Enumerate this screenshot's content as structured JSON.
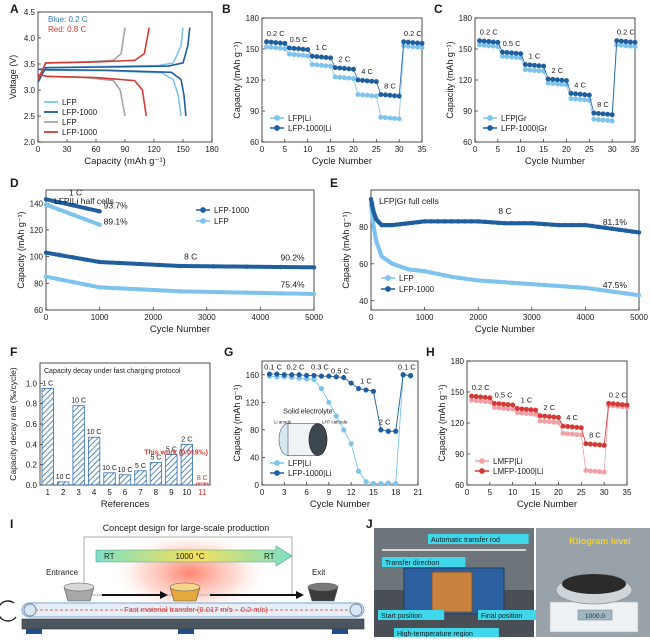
{
  "labels": {
    "A": "A",
    "B": "B",
    "C": "C",
    "D": "D",
    "E": "E",
    "F": "F",
    "G": "G",
    "H": "H",
    "I": "I",
    "J": "J"
  },
  "colors": {
    "dark": "#1f5f9e",
    "light": "#7ec3ec",
    "red": "#d43a35",
    "pink": "#f0a0a6",
    "grey": "#a5a5a5",
    "hatch": "#2f6fb0"
  },
  "chart_data": [
    {
      "id": "A",
      "type": "line",
      "xlabel": "Capacity (mAh g⁻¹)",
      "ylabel": "Voltage (V)",
      "xlim": [
        0,
        180
      ],
      "ylim": [
        2.0,
        4.5
      ],
      "xticks": [
        0,
        30,
        60,
        90,
        120,
        150,
        180
      ],
      "yticks": [
        2.0,
        2.5,
        3.0,
        3.5,
        4.0,
        4.5
      ],
      "annotation_lines": [
        {
          "text": "Blue: 0.2 C",
          "color": "#2f7dc0"
        },
        {
          "text": "Red: 0.8 C",
          "color": "#d43a35"
        }
      ],
      "legend": [
        "LFP",
        "LFP-1000",
        "LFP",
        "LFP-1000"
      ],
      "series": [
        {
          "name": "LFP",
          "color": "#7ec3ec",
          "charge": [
            [
              0,
              3.15
            ],
            [
              8,
              3.43
            ],
            [
              60,
              3.45
            ],
            [
              125,
              3.47
            ],
            [
              140,
              3.52
            ],
            [
              148,
              3.85
            ],
            [
              150,
              4.2
            ]
          ],
          "discharge": [
            [
              0,
              3.4
            ],
            [
              10,
              3.38
            ],
            [
              70,
              3.37
            ],
            [
              128,
              3.33
            ],
            [
              140,
              3.2
            ],
            [
              145,
              2.9
            ],
            [
              148,
              2.5
            ]
          ]
        },
        {
          "name": "LFP-1000",
          "color": "#1f5f9e",
          "charge": [
            [
              0,
              3.15
            ],
            [
              8,
              3.43
            ],
            [
              60,
              3.44
            ],
            [
              135,
              3.46
            ],
            [
              150,
              3.52
            ],
            [
              155,
              3.85
            ],
            [
              157,
              4.2
            ]
          ],
          "discharge": [
            [
              0,
              3.4
            ],
            [
              10,
              3.39
            ],
            [
              70,
              3.38
            ],
            [
              138,
              3.34
            ],
            [
              148,
              3.2
            ],
            [
              151,
              2.9
            ],
            [
              153,
              2.5
            ]
          ]
        },
        {
          "name": "LFP",
          "color": "#a5a5a5",
          "charge": [
            [
              0,
              3.2
            ],
            [
              8,
              3.52
            ],
            [
              50,
              3.54
            ],
            [
              78,
              3.57
            ],
            [
              86,
              3.7
            ],
            [
              90,
              4.2
            ]
          ],
          "discharge": [
            [
              0,
              3.3
            ],
            [
              10,
              3.26
            ],
            [
              50,
              3.24
            ],
            [
              78,
              3.18
            ],
            [
              85,
              3.0
            ],
            [
              90,
              2.5
            ]
          ]
        },
        {
          "name": "LFP-1000",
          "color": "#d43a35",
          "charge": [
            [
              0,
              3.2
            ],
            [
              8,
              3.52
            ],
            [
              60,
              3.54
            ],
            [
              100,
              3.57
            ],
            [
              110,
              3.7
            ],
            [
              115,
              4.2
            ]
          ],
          "discharge": [
            [
              0,
              3.3
            ],
            [
              10,
              3.26
            ],
            [
              60,
              3.24
            ],
            [
              100,
              3.18
            ],
            [
              108,
              3.0
            ],
            [
              112,
              2.5
            ]
          ]
        }
      ]
    },
    {
      "id": "B",
      "type": "scatter",
      "xlabel": "Cycle Number",
      "ylabel": "Capacity (mAh g⁻¹)",
      "xlim": [
        0,
        35
      ],
      "ylim": [
        60,
        180
      ],
      "xticks": [
        0,
        5,
        10,
        15,
        20,
        25,
        30,
        35
      ],
      "yticks": [
        60,
        90,
        120,
        150,
        180
      ],
      "rate_labels": [
        {
          "text": "0.2 C",
          "x": 2.5,
          "y": 162
        },
        {
          "text": "0.5 C",
          "x": 7.5,
          "y": 156
        },
        {
          "text": "1 C",
          "x": 12.5,
          "y": 147
        },
        {
          "text": "2 C",
          "x": 17.5,
          "y": 136
        },
        {
          "text": "4 C",
          "x": 22.5,
          "y": 123
        },
        {
          "text": "8 C",
          "x": 27.5,
          "y": 110
        },
        {
          "text": "0.2 C",
          "x": 32.5,
          "y": 162
        }
      ],
      "legend": [
        "LFP|Li",
        "LFP-1000|Li"
      ],
      "series": [
        {
          "name": "LFP|Li",
          "color": "#7ec3ec",
          "steps": [
            152,
            145,
            135,
            123,
            106,
            84,
            153
          ]
        },
        {
          "name": "LFP-1000|Li",
          "color": "#1f5f9e",
          "steps": [
            157,
            151,
            143,
            132,
            120,
            106,
            157
          ]
        }
      ]
    },
    {
      "id": "C",
      "type": "scatter",
      "xlabel": "Cycle Number",
      "ylabel": "Capacity (mAh g⁻¹)",
      "xlim": [
        0,
        35
      ],
      "ylim": [
        60,
        180
      ],
      "xticks": [
        0,
        5,
        10,
        15,
        20,
        25,
        30,
        35
      ],
      "yticks": [
        60,
        90,
        120,
        150,
        180
      ],
      "rate_labels": [
        {
          "text": "0.2 C",
          "x": 2.5,
          "y": 164
        },
        {
          "text": "0.5 C",
          "x": 7.5,
          "y": 153
        },
        {
          "text": "1 C",
          "x": 12.5,
          "y": 142
        },
        {
          "text": "2 C",
          "x": 17.5,
          "y": 128
        },
        {
          "text": "4 C",
          "x": 22.5,
          "y": 114
        },
        {
          "text": "8 C",
          "x": 27.5,
          "y": 95
        },
        {
          "text": "0.2 C",
          "x": 32.5,
          "y": 164
        }
      ],
      "legend": [
        "LFP|Gr",
        "LFP-1000|Gr"
      ],
      "series": [
        {
          "name": "LFP|Gr",
          "color": "#7ec3ec",
          "steps": [
            154,
            143,
            130,
            117,
            102,
            82,
            154
          ]
        },
        {
          "name": "LFP-1000|Gr",
          "color": "#1f5f9e",
          "steps": [
            158,
            147,
            135,
            121,
            107,
            88,
            158
          ]
        }
      ]
    },
    {
      "id": "D",
      "type": "scatter",
      "title": "LFP|Li half cells",
      "xlabel": "Cycle Number",
      "ylabel": "Capacity (mAh g⁻¹)",
      "xlim": [
        0,
        5000
      ],
      "ylim": [
        60,
        150
      ],
      "xticks": [
        0,
        1000,
        2000,
        3000,
        4000,
        5000
      ],
      "yticks": [
        60,
        80,
        100,
        120,
        140
      ],
      "legend": [
        "LFP-1000",
        "LFP"
      ],
      "series": [
        {
          "name": "LFP-1000 1 C",
          "color": "#1f5f9e",
          "x": [
            0,
            1000
          ],
          "y": [
            143,
            134
          ]
        },
        {
          "name": "LFP 1 C",
          "color": "#7ec3ec",
          "x": [
            0,
            1000
          ],
          "y": [
            139,
            124
          ]
        },
        {
          "name": "LFP-1000 8 C",
          "color": "#1f5f9e",
          "x": [
            0,
            1000,
            2500,
            5000
          ],
          "y": [
            103,
            96,
            93,
            92
          ]
        },
        {
          "name": "LFP 8 C",
          "color": "#7ec3ec",
          "x": [
            0,
            1000,
            2500,
            5000
          ],
          "y": [
            85,
            77,
            74,
            72
          ]
        }
      ],
      "annotations": [
        "1 C",
        "93.7%",
        "89.1%",
        "8 C",
        "90.2%",
        "75.4%"
      ]
    },
    {
      "id": "E",
      "type": "scatter",
      "title": "LFP|Gr full cells",
      "xlabel": "Cycle Number",
      "ylabel": "Capacity (mAh g⁻¹)",
      "xlim": [
        0,
        5000
      ],
      "ylim": [
        35,
        100
      ],
      "xticks": [
        0,
        1000,
        2000,
        3000,
        4000,
        5000
      ],
      "yticks": [
        40,
        60,
        80
      ],
      "legend": [
        "LFP",
        "LFP-1000"
      ],
      "series": [
        {
          "name": "LFP",
          "color": "#7ec3ec",
          "x": [
            0,
            50,
            100,
            200,
            400,
            700,
            1000,
            1500,
            2000,
            2500,
            3000,
            3500,
            4000,
            4500,
            5000
          ],
          "y": [
            92,
            80,
            72,
            64,
            60,
            57,
            56,
            53,
            51,
            50,
            49,
            48,
            47,
            45,
            43
          ]
        },
        {
          "name": "LFP-1000",
          "color": "#1f5f9e",
          "x": [
            0,
            50,
            100,
            200,
            400,
            700,
            1000,
            1500,
            2000,
            2500,
            3000,
            3500,
            4000,
            4500,
            5000
          ],
          "y": [
            95,
            88,
            84,
            81,
            81,
            82,
            83,
            83,
            83,
            82,
            82,
            81,
            81,
            79,
            77
          ]
        }
      ],
      "annotations": [
        "8 C",
        "81.1%",
        "47.5%"
      ]
    },
    {
      "id": "F",
      "type": "bar",
      "title": "Capacity decay under fast charging protocol",
      "xlabel": "References",
      "ylabel": "Capacity decay rate (‰/cycle)",
      "ylim": [
        0,
        1.2
      ],
      "yticks": [
        0.0,
        0.2,
        0.4,
        0.6,
        0.8,
        1.0
      ],
      "categories": [
        "1",
        "2",
        "3",
        "4",
        "5",
        "6",
        "7",
        "8",
        "9",
        "10",
        "11"
      ],
      "values": [
        0.95,
        0.03,
        0.78,
        0.47,
        0.12,
        0.1,
        0.14,
        0.22,
        0.3,
        0.4,
        0.019
      ],
      "bar_labels": [
        "1 C",
        "10 C",
        "10 C",
        "10 C",
        "10 C",
        "10 C",
        "5 C",
        "5 C",
        "5 C",
        "2 C",
        "8 C"
      ],
      "annotation": "This work (0.019‰)"
    },
    {
      "id": "G",
      "type": "scatter",
      "xlabel": "Cycle Number",
      "ylabel": "Capacity (mAh g⁻¹)",
      "xlim": [
        0,
        21
      ],
      "ylim": [
        0,
        180
      ],
      "xticks": [
        0,
        3,
        6,
        9,
        12,
        15,
        18,
        21
      ],
      "yticks": [
        0,
        40,
        80,
        120,
        160
      ],
      "rate_labels": [
        "0.1 C",
        "0.2 C",
        "0.3 C",
        "0.5 C",
        "1 C",
        "2 C",
        "0.1 C"
      ],
      "inset": {
        "title": "Solid electrolyte",
        "left": "Li anode",
        "right": "LFP cathode"
      },
      "legend": [
        "LFP|Li",
        "LFP-1000|Li"
      ],
      "series": [
        {
          "name": "LFP|Li",
          "color": "#7ec3ec",
          "x": [
            1,
            2,
            3,
            4,
            5,
            6,
            7,
            8,
            9,
            10,
            11,
            12,
            13,
            14,
            15,
            16,
            17,
            18,
            19,
            20
          ],
          "y": [
            158,
            157,
            157,
            156,
            155,
            154,
            153,
            140,
            120,
            100,
            80,
            60,
            20,
            5,
            2,
            2,
            3,
            2,
            160,
            158
          ]
        },
        {
          "name": "LFP-1000|Li",
          "color": "#1f5f9e",
          "x": [
            1,
            2,
            3,
            4,
            5,
            6,
            7,
            8,
            9,
            10,
            11,
            12,
            13,
            14,
            15,
            16,
            17,
            18,
            19,
            20
          ],
          "y": [
            161,
            161,
            160,
            160,
            160,
            159,
            159,
            158,
            158,
            157,
            156,
            148,
            140,
            138,
            136,
            80,
            78,
            78,
            160,
            159
          ]
        }
      ]
    },
    {
      "id": "H",
      "type": "scatter",
      "xlabel": "Cycle Number",
      "ylabel": "Capacity (mAh g⁻¹)",
      "xlim": [
        0,
        35
      ],
      "ylim": [
        60,
        180
      ],
      "xticks": [
        0,
        5,
        10,
        15,
        20,
        25,
        30,
        35
      ],
      "yticks": [
        60,
        90,
        120,
        150,
        180
      ],
      "rate_labels": [
        "0.2 C",
        "0.5 C",
        "1 C",
        "2 C",
        "4 C",
        "8 C",
        "0.2 C"
      ],
      "legend": [
        "LMFP|Li",
        "LMFP-1000|Li"
      ],
      "series": [
        {
          "name": "LMFP|Li",
          "color": "#f0a0a6",
          "steps": [
            142,
            135,
            130,
            122,
            110,
            74,
            137
          ]
        },
        {
          "name": "LMFP-1000|Li",
          "color": "#d43a35",
          "steps": [
            146,
            139,
            134,
            127,
            117,
            100,
            139
          ]
        }
      ]
    }
  ],
  "schematic": {
    "title": "Concept design for large-scale production",
    "entrance": "Entrance",
    "exit": "Exit",
    "rt_left": "RT",
    "temp": "1000 °C",
    "rt_right": "RT",
    "transfer": "Fast material transfer (0.017 m/s – 0.2 m/s)"
  },
  "photo": {
    "rod": "Automatic transfer rod",
    "direction": "Transfer direction",
    "start": "Start position",
    "final": "Final position",
    "hot": "High-temperature region",
    "kg": "Kilogram level",
    "scale_reading": "1000.0"
  }
}
